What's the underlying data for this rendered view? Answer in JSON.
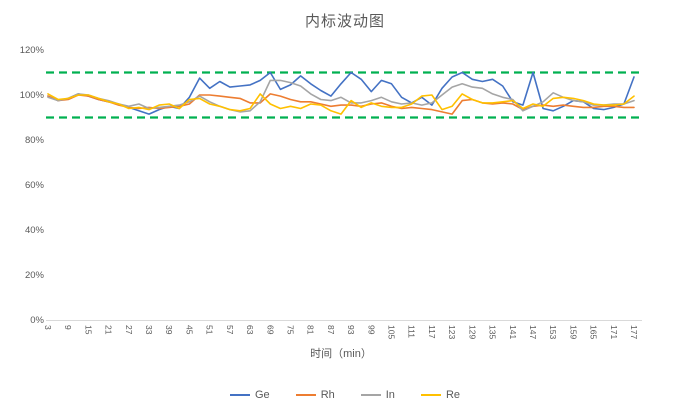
{
  "chart_data": {
    "type": "line",
    "title": "内标波动图",
    "xlabel": "时间（min）",
    "ylabel": "",
    "grid": false,
    "legend_position": "bottom",
    "ylim_percent": [
      0,
      120
    ],
    "y_ticks": [
      0,
      20,
      40,
      60,
      80,
      100,
      120
    ],
    "y_tick_labels": [
      "0%",
      "20%",
      "40%",
      "60%",
      "80%",
      "100%",
      "120%"
    ],
    "x_tick_labels": [
      "3",
      "9",
      "15",
      "21",
      "27",
      "33",
      "39",
      "45",
      "51",
      "57",
      "63",
      "69",
      "75",
      "81",
      "87",
      "93",
      "99",
      "105",
      "111",
      "117",
      "123",
      "129",
      "135",
      "141",
      "147",
      "153",
      "159",
      "165",
      "171",
      "177"
    ],
    "x": [
      3,
      6,
      9,
      12,
      15,
      18,
      21,
      24,
      27,
      30,
      33,
      36,
      39,
      42,
      45,
      48,
      51,
      54,
      57,
      60,
      63,
      66,
      69,
      72,
      75,
      78,
      81,
      84,
      87,
      90,
      93,
      96,
      99,
      102,
      105,
      108,
      111,
      114,
      117,
      120,
      123,
      126,
      129,
      132,
      135,
      138,
      141,
      144,
      147,
      150,
      153,
      156,
      159,
      162,
      165,
      168,
      171,
      174,
      177
    ],
    "series": [
      {
        "name": "Ge",
        "color": "#4472C4",
        "values": [
          99.5,
          97.5,
          98.5,
          100.5,
          99.5,
          98,
          97,
          96,
          94.5,
          93,
          91.5,
          93.5,
          95,
          94,
          99,
          107.5,
          103,
          106,
          103.5,
          104,
          104.5,
          106.5,
          110,
          102.5,
          104.5,
          108.5,
          105,
          102,
          99.5,
          105,
          110,
          107,
          101.5,
          106.5,
          105,
          99,
          96.5,
          99,
          95.5,
          103,
          108,
          110,
          107,
          106,
          107,
          104,
          97,
          95.5,
          110,
          94,
          93,
          95,
          97.5,
          97,
          94,
          93.5,
          94.5,
          96,
          108
        ]
      },
      {
        "name": "Rh",
        "color": "#ED7D31",
        "values": [
          99.5,
          97.5,
          98,
          100,
          99.5,
          98,
          97,
          95.5,
          94.5,
          94,
          94.5,
          94,
          94.5,
          95,
          96,
          100,
          100,
          99.5,
          99,
          98.5,
          96.5,
          96.5,
          100.5,
          99.5,
          98,
          97,
          97,
          96,
          95,
          95.5,
          95.5,
          95,
          96,
          96.5,
          95,
          94,
          94.5,
          94,
          93.5,
          92.5,
          91.5,
          97.5,
          98,
          96.5,
          96,
          96.5,
          96,
          93.5,
          95,
          95.5,
          95,
          95.5,
          95,
          94.5,
          94.5,
          95,
          95,
          94.5,
          94.5
        ]
      },
      {
        "name": "In",
        "color": "#A5A5A5",
        "values": [
          99,
          97.5,
          98.5,
          100.5,
          100,
          98.5,
          97.5,
          96,
          95,
          96,
          94,
          94.5,
          95,
          95.5,
          97,
          99.5,
          97,
          95,
          93.5,
          92.5,
          93,
          97,
          106.5,
          106.5,
          105.5,
          104,
          100.5,
          98,
          97.5,
          99,
          96.5,
          96.5,
          97.5,
          99,
          97,
          96,
          96.5,
          95.5,
          96.5,
          100,
          103.5,
          105,
          103.5,
          103,
          100.5,
          99,
          98,
          93,
          95,
          97,
          101,
          99,
          97.5,
          97,
          95.5,
          95.5,
          96,
          96,
          97.5
        ]
      },
      {
        "name": "Re",
        "color": "#FFC000",
        "values": [
          100.5,
          98,
          98.5,
          100,
          100,
          98.5,
          97,
          96,
          94,
          94.5,
          93.5,
          95.5,
          96,
          94,
          98,
          98.5,
          96,
          95,
          93.5,
          93,
          94,
          100.5,
          96,
          94,
          95,
          94,
          96,
          95.5,
          93,
          91.5,
          97.5,
          94.5,
          96.5,
          95,
          94.5,
          94.5,
          96,
          99.5,
          100,
          93.5,
          95,
          100.5,
          98,
          96.5,
          96.5,
          97,
          97.5,
          94,
          96,
          95,
          98.5,
          99,
          98.5,
          97.5,
          96,
          95.5,
          95.5,
          96,
          99.5
        ]
      }
    ],
    "limit_lines": [
      {
        "name": "upper-limit",
        "value": 110,
        "color": "#00B050",
        "style": "dashed"
      },
      {
        "name": "lower-limit",
        "value": 90,
        "color": "#00B050",
        "style": "dashed"
      }
    ],
    "axis_line_color": "#D9D9D9",
    "text_color": "#595959"
  }
}
